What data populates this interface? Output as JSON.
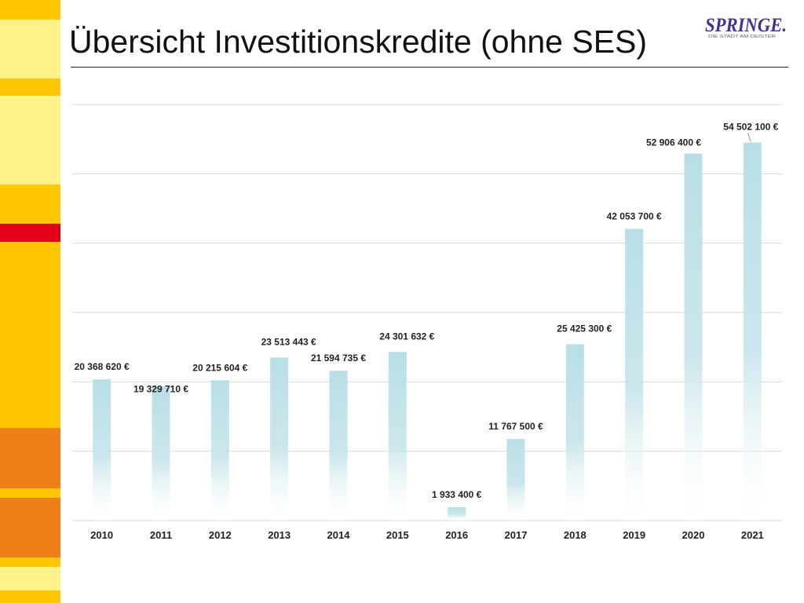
{
  "slide": {
    "title": "Übersicht Investitionskredite (ohne SES)"
  },
  "logo": {
    "text": "SPRINGE.",
    "tagline": "DIE STADT AM DEISTER"
  },
  "colors": {
    "bar": "#b8dfe6",
    "grid": "#d9d9d9",
    "stripe_pale": "#fff28a",
    "stripe_yellow": "#ffc800",
    "stripe_orange": "#f07f1a",
    "stripe_red": "#e3001b",
    "logo_purple": "#4a2f8f"
  },
  "chart_data": {
    "type": "bar",
    "categories": [
      "2010",
      "2011",
      "2012",
      "2013",
      "2014",
      "2015",
      "2016",
      "2017",
      "2018",
      "2019",
      "2020",
      "2021"
    ],
    "values": [
      20368620,
      19329710,
      20215604,
      23513443,
      21594735,
      24301632,
      1933400,
      11767500,
      25425300,
      42053700,
      52906400,
      54502100
    ],
    "data_labels": [
      "20 368 620 €",
      "19 329 710 €",
      "20 215 604 €",
      "23 513 443 €",
      "21 594 735 €",
      "24 301 632 €",
      "1 933 400 €",
      "11 767 500 €",
      "25 425 300 €",
      "42 053 700 €",
      "52 906 400 €",
      "54 502 100 €"
    ],
    "ylim": [
      0,
      60000000
    ],
    "grid": true,
    "legend": "none"
  }
}
